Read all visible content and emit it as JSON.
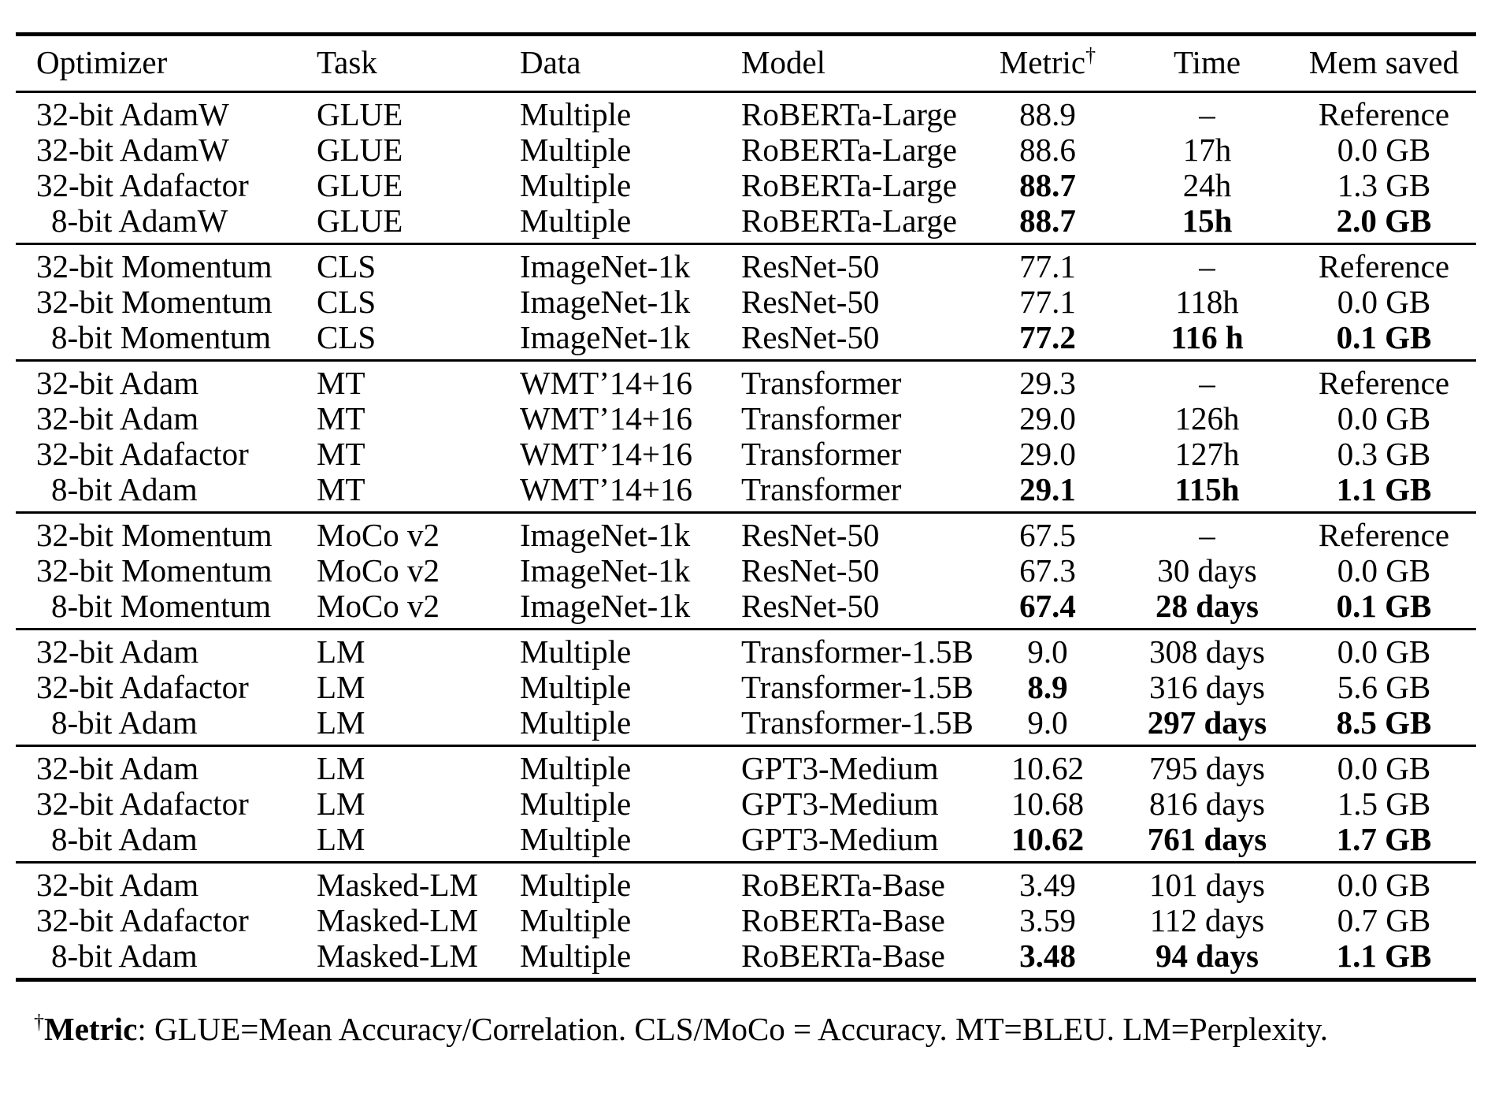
{
  "table": {
    "headers": {
      "optimizer": "Optimizer",
      "task": "Task",
      "data": "Data",
      "model": "Model",
      "metric": "Metric",
      "metric_dagger": "†",
      "time": "Time",
      "mem": "Mem saved"
    },
    "sections": [
      {
        "rows": [
          {
            "optimizer": "32-bit AdamW",
            "task": "GLUE",
            "data": "Multiple",
            "model": "RoBERTa-Large",
            "metric": "88.9",
            "time": "–",
            "mem": "Reference",
            "bold": []
          },
          {
            "optimizer": "32-bit AdamW",
            "task": "GLUE",
            "data": "Multiple",
            "model": "RoBERTa-Large",
            "metric": "88.6",
            "time": "17h",
            "mem": "0.0 GB",
            "bold": []
          },
          {
            "optimizer": "32-bit Adafactor",
            "task": "GLUE",
            "data": "Multiple",
            "model": "RoBERTa-Large",
            "metric": "88.7",
            "time": "24h",
            "mem": "1.3 GB",
            "bold": [
              "metric"
            ]
          },
          {
            "optimizer": "8-bit AdamW",
            "task": "GLUE",
            "data": "Multiple",
            "model": "RoBERTa-Large",
            "metric": "88.7",
            "time": "15h",
            "mem": "2.0 GB",
            "bold": [
              "metric",
              "time",
              "mem"
            ]
          }
        ]
      },
      {
        "rows": [
          {
            "optimizer": "32-bit Momentum",
            "task": "CLS",
            "data": "ImageNet-1k",
            "model": "ResNet-50",
            "metric": "77.1",
            "time": "–",
            "mem": "Reference",
            "bold": []
          },
          {
            "optimizer": "32-bit Momentum",
            "task": "CLS",
            "data": "ImageNet-1k",
            "model": "ResNet-50",
            "metric": "77.1",
            "time": "118h",
            "mem": "0.0 GB",
            "bold": []
          },
          {
            "optimizer": "8-bit Momentum",
            "task": "CLS",
            "data": "ImageNet-1k",
            "model": "ResNet-50",
            "metric": "77.2",
            "time": "116 h",
            "mem": "0.1 GB",
            "bold": [
              "metric",
              "time",
              "mem"
            ]
          }
        ]
      },
      {
        "rows": [
          {
            "optimizer": "32-bit Adam",
            "task": "MT",
            "data": "WMT’14+16",
            "model": "Transformer",
            "metric": "29.3",
            "time": "–",
            "mem": "Reference",
            "bold": []
          },
          {
            "optimizer": "32-bit Adam",
            "task": "MT",
            "data": "WMT’14+16",
            "model": "Transformer",
            "metric": "29.0",
            "time": "126h",
            "mem": "0.0 GB",
            "bold": []
          },
          {
            "optimizer": "32-bit Adafactor",
            "task": "MT",
            "data": "WMT’14+16",
            "model": "Transformer",
            "metric": "29.0",
            "time": "127h",
            "mem": "0.3 GB",
            "bold": []
          },
          {
            "optimizer": "8-bit Adam",
            "task": "MT",
            "data": "WMT’14+16",
            "model": "Transformer",
            "metric": "29.1",
            "time": "115h",
            "mem": "1.1 GB",
            "bold": [
              "metric",
              "time",
              "mem"
            ]
          }
        ]
      },
      {
        "rows": [
          {
            "optimizer": "32-bit Momentum",
            "task": "MoCo v2",
            "data": "ImageNet-1k",
            "model": "ResNet-50",
            "metric": "67.5",
            "time": "–",
            "mem": "Reference",
            "bold": []
          },
          {
            "optimizer": "32-bit Momentum",
            "task": "MoCo v2",
            "data": "ImageNet-1k",
            "model": "ResNet-50",
            "metric": "67.3",
            "time": "30 days",
            "mem": "0.0 GB",
            "bold": []
          },
          {
            "optimizer": "8-bit Momentum",
            "task": "MoCo v2",
            "data": "ImageNet-1k",
            "model": "ResNet-50",
            "metric": "67.4",
            "time": "28 days",
            "mem": "0.1 GB",
            "bold": [
              "metric",
              "time",
              "mem"
            ]
          }
        ]
      },
      {
        "rows": [
          {
            "optimizer": "32-bit Adam",
            "task": "LM",
            "data": "Multiple",
            "model": "Transformer-1.5B",
            "metric": "9.0",
            "time": "308 days",
            "mem": "0.0 GB",
            "bold": []
          },
          {
            "optimizer": "32-bit Adafactor",
            "task": "LM",
            "data": "Multiple",
            "model": "Transformer-1.5B",
            "metric": "8.9",
            "time": "316 days",
            "mem": "5.6 GB",
            "bold": [
              "metric"
            ]
          },
          {
            "optimizer": "8-bit Adam",
            "task": "LM",
            "data": "Multiple",
            "model": "Transformer-1.5B",
            "metric": "9.0",
            "time": "297 days",
            "mem": "8.5 GB",
            "bold": [
              "time",
              "mem"
            ]
          }
        ]
      },
      {
        "rows": [
          {
            "optimizer": "32-bit Adam",
            "task": "LM",
            "data": "Multiple",
            "model": "GPT3-Medium",
            "metric": "10.62",
            "time": "795 days",
            "mem": "0.0 GB",
            "bold": []
          },
          {
            "optimizer": "32-bit Adafactor",
            "task": "LM",
            "data": "Multiple",
            "model": "GPT3-Medium",
            "metric": "10.68",
            "time": "816 days",
            "mem": "1.5 GB",
            "bold": []
          },
          {
            "optimizer": "8-bit Adam",
            "task": "LM",
            "data": "Multiple",
            "model": "GPT3-Medium",
            "metric": "10.62",
            "time": "761 days",
            "mem": "1.7 GB",
            "bold": [
              "metric",
              "time",
              "mem"
            ]
          }
        ]
      },
      {
        "rows": [
          {
            "optimizer": "32-bit Adam",
            "task": "Masked-LM",
            "data": "Multiple",
            "model": "RoBERTa-Base",
            "metric": "3.49",
            "time": "101 days",
            "mem": "0.0 GB",
            "bold": []
          },
          {
            "optimizer": "32-bit Adafactor",
            "task": "Masked-LM",
            "data": "Multiple",
            "model": "RoBERTa-Base",
            "metric": "3.59",
            "time": "112 days",
            "mem": "0.7 GB",
            "bold": []
          },
          {
            "optimizer": "8-bit Adam",
            "task": "Masked-LM",
            "data": "Multiple",
            "model": "RoBERTa-Base",
            "metric": "3.48",
            "time": "94 days",
            "mem": "1.1 GB",
            "bold": [
              "metric",
              "time",
              "mem"
            ]
          }
        ]
      }
    ]
  },
  "footnote": {
    "dagger": "†",
    "label": "Metric",
    "text": ": GLUE=Mean Accuracy/Correlation. CLS/MoCo = Accuracy. MT=BLEU. LM=Perplexity."
  }
}
